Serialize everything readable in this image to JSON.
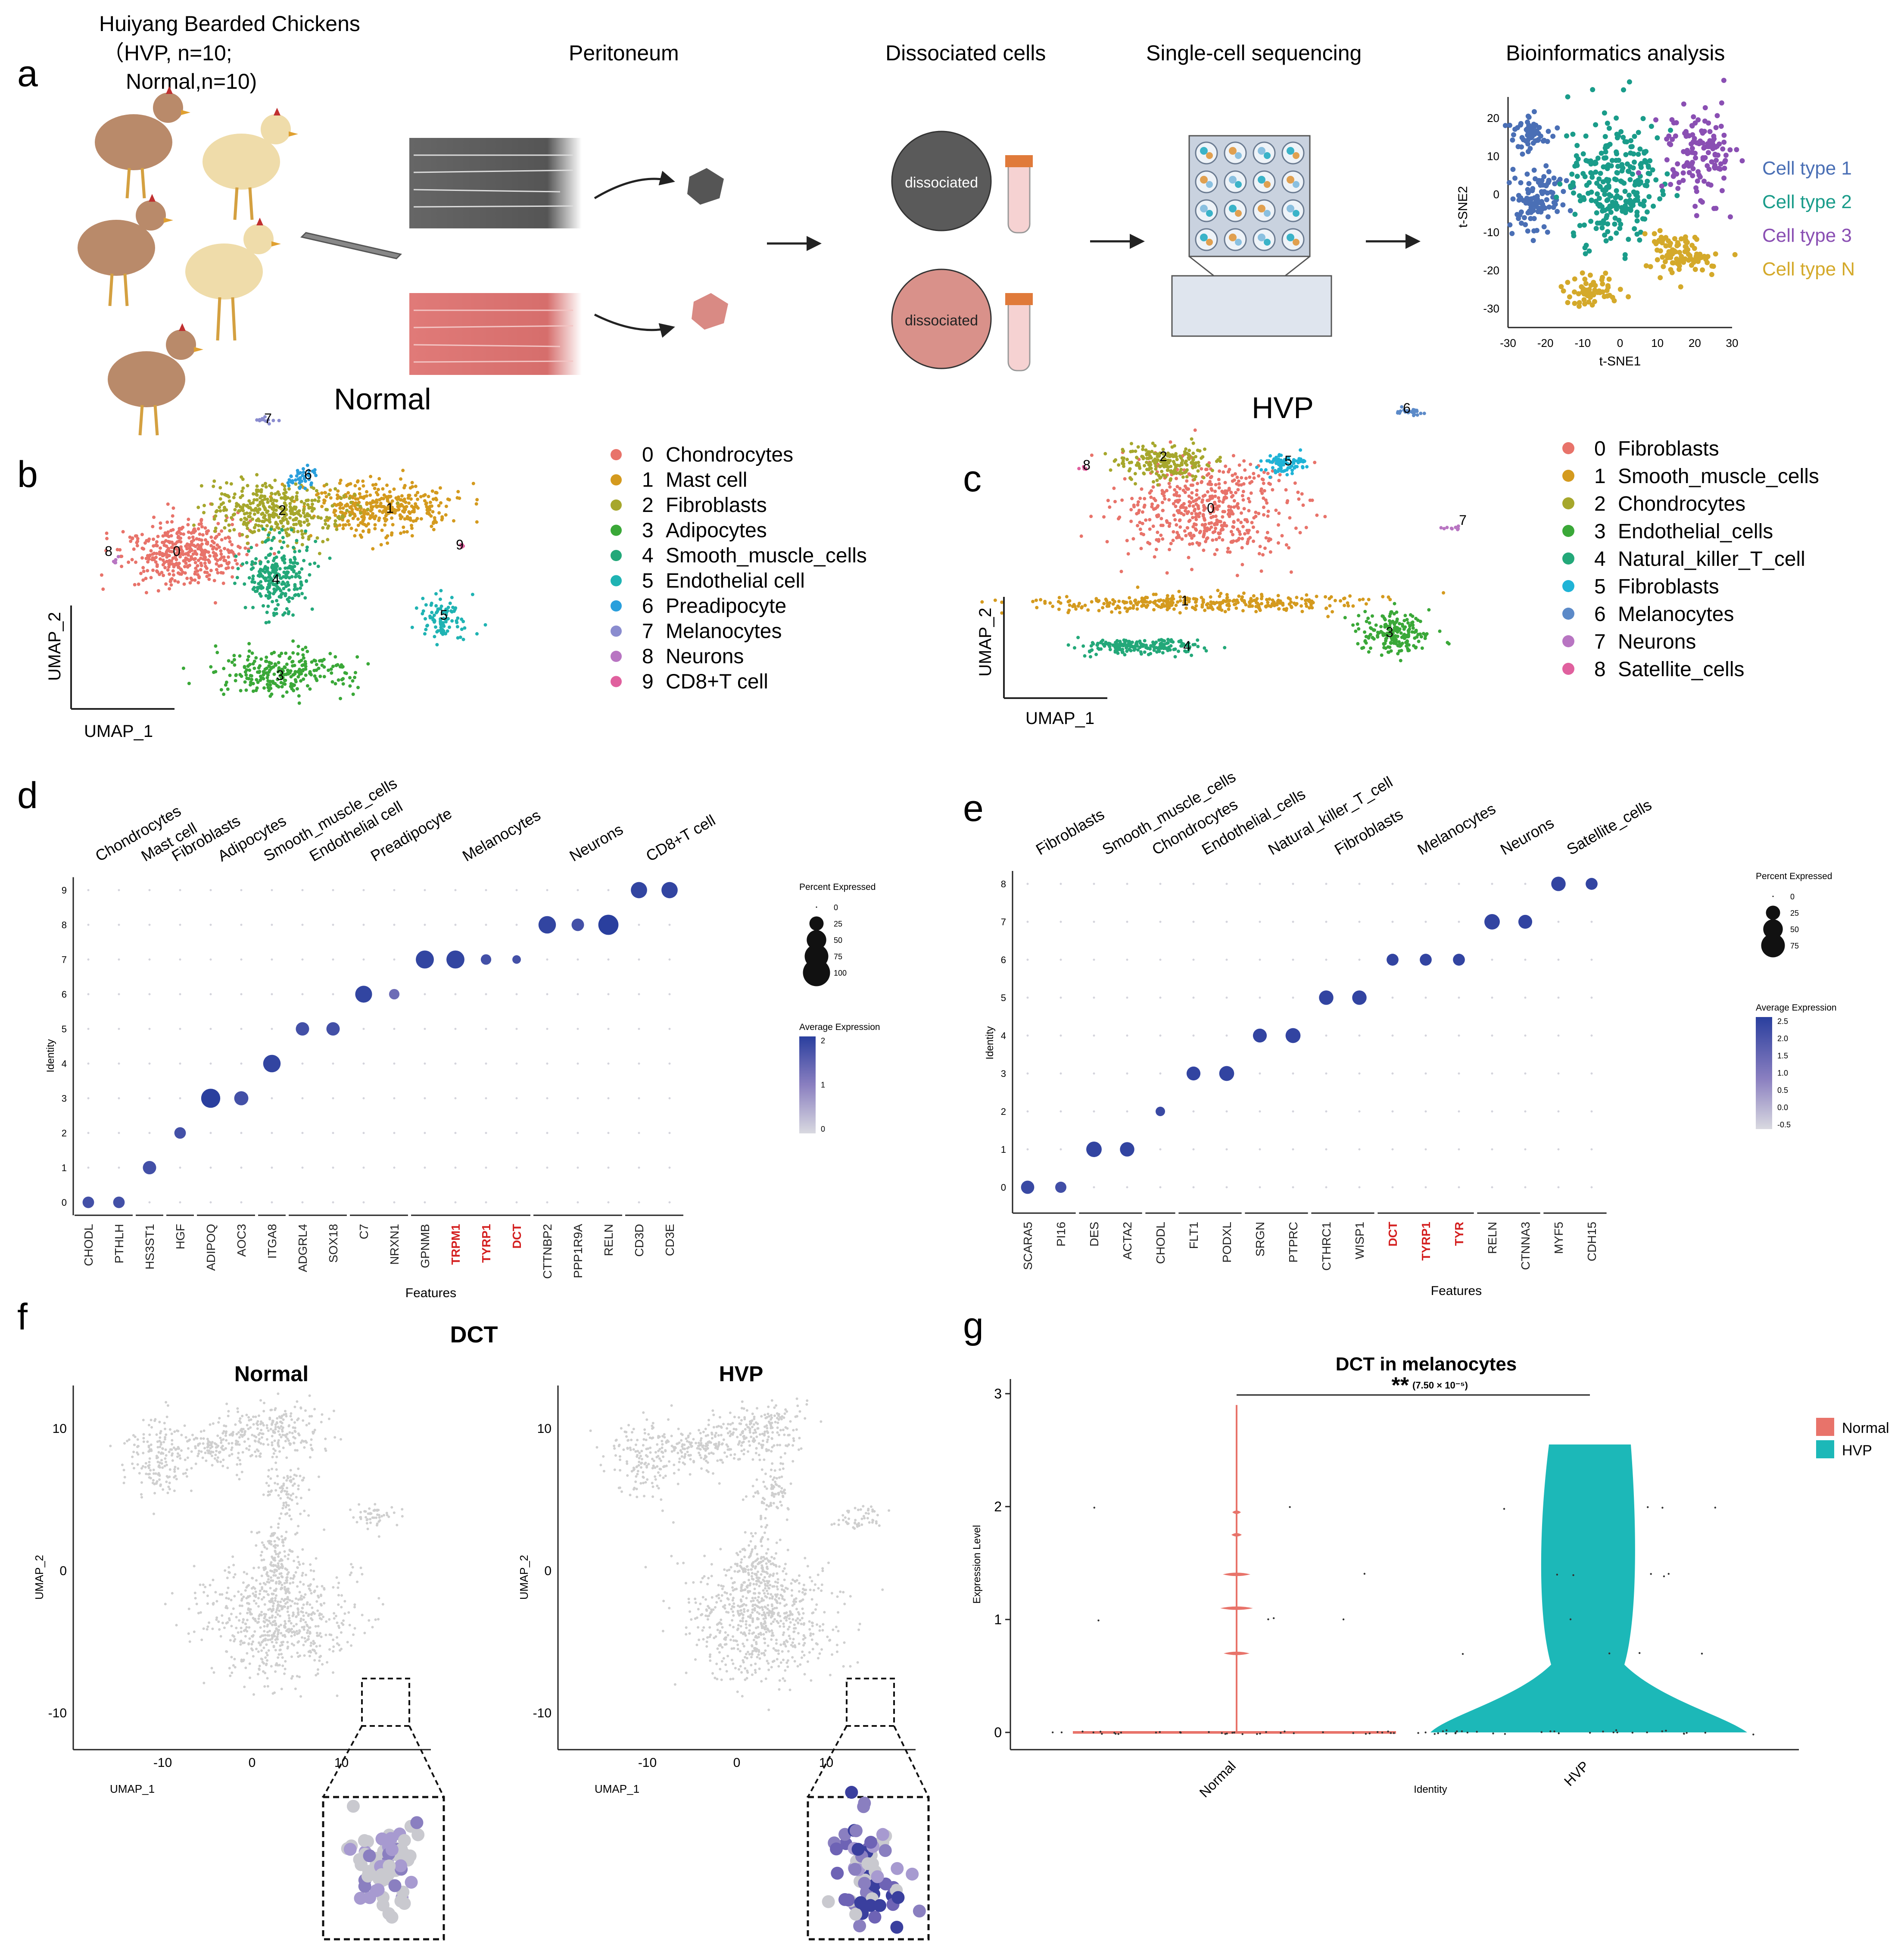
{
  "panel_letters": {
    "a": "a",
    "b": "b",
    "c": "c",
    "d": "d",
    "e": "e",
    "f": "f",
    "g": "g"
  },
  "panel_a": {
    "chickens_title": "Huiyang Bearded Chickens",
    "chickens_hvp": "（HVP,     n=10;",
    "chickens_normal": "Normal,n=10)",
    "peritoneum": "Peritoneum",
    "dissociated_cells": "Dissociated cells",
    "single_cell_seq": "Single-cell sequencing",
    "bioinformatics": "Bioinformatics analysis",
    "dissociated_label": "dissociated",
    "tsne": {
      "xlabel": "t-SNE1",
      "ylabel": "t-SNE2",
      "xticks": [
        "-30",
        "-20",
        "-10",
        "0",
        "10",
        "20",
        "30"
      ],
      "yticks": [
        "20",
        "10",
        "0",
        "-10",
        "-20",
        "-30"
      ],
      "legend": [
        "Cell type 1",
        "Cell type 2",
        "Cell type 3",
        "Cell type N"
      ],
      "colors": [
        "#4a6fb5",
        "#1a9c8a",
        "#8a4fb3",
        "#d4a92a"
      ]
    }
  },
  "panel_b": {
    "title": "Normal",
    "xlabel": "UMAP_1",
    "ylabel": "UMAP_2",
    "clusters": [
      {
        "id": "0",
        "name": "Chondrocytes",
        "color": "#e8736a"
      },
      {
        "id": "1",
        "name": "Mast cell",
        "color": "#d49a1e"
      },
      {
        "id": "2",
        "name": "Fibroblasts",
        "color": "#a6a72c"
      },
      {
        "id": "3",
        "name": "Adipocytes",
        "color": "#3aa838"
      },
      {
        "id": "4",
        "name": "Smooth_muscle_cells",
        "color": "#23a879"
      },
      {
        "id": "5",
        "name": "Endothelial cell",
        "color": "#1fb3b3"
      },
      {
        "id": "6",
        "name": "Preadipocyte",
        "color": "#2a9fdc"
      },
      {
        "id": "7",
        "name": "Melanocytes",
        "color": "#8a8ccf"
      },
      {
        "id": "8",
        "name": "Neurons",
        "color": "#b875c2"
      },
      {
        "id": "9",
        "name": "CD8+T cell",
        "color": "#e0609e"
      }
    ]
  },
  "panel_c": {
    "title": "HVP",
    "xlabel": "UMAP_1",
    "ylabel": "UMAP_2",
    "clusters": [
      {
        "id": "0",
        "name": "Fibroblasts",
        "color": "#e8736a"
      },
      {
        "id": "1",
        "name": "Smooth_muscle_cells",
        "color": "#d49a1e"
      },
      {
        "id": "2",
        "name": "Chondrocytes",
        "color": "#a6a72c"
      },
      {
        "id": "3",
        "name": "Endothelial_cells",
        "color": "#3aa838"
      },
      {
        "id": "4",
        "name": "Natural_killer_T_cell",
        "color": "#23a879"
      },
      {
        "id": "5",
        "name": "Fibroblasts",
        "color": "#1fb3d6"
      },
      {
        "id": "6",
        "name": "Melanocytes",
        "color": "#5c8ac8"
      },
      {
        "id": "7",
        "name": "Neurons",
        "color": "#b875c2"
      },
      {
        "id": "8",
        "name": "Satellite_cells",
        "color": "#e0609e"
      }
    ]
  },
  "panel_d": {
    "xlabel": "Features",
    "ylabel": "Identity",
    "yticks": [
      "0",
      "1",
      "2",
      "3",
      "4",
      "5",
      "6",
      "7",
      "8",
      "9"
    ],
    "groups": [
      {
        "label": "Chondrocytes",
        "genes": [
          "CHODL",
          "PTHLH"
        ]
      },
      {
        "label": "Mast cell",
        "genes": [
          "HS3ST1"
        ]
      },
      {
        "label": "Fibroblasts",
        "genes": [
          "HGF"
        ]
      },
      {
        "label": "Adipocytes",
        "genes": [
          "ADIPOQ",
          "AOC3"
        ]
      },
      {
        "label": "Smooth_muscle_cells",
        "genes": [
          "ITGA8"
        ]
      },
      {
        "label": "Endothelial cell",
        "genes": [
          "ADGRL4",
          "SOX18"
        ]
      },
      {
        "label": "Preadipocyte",
        "genes": [
          "C7",
          "NRXN1"
        ]
      },
      {
        "label": "Melanocytes",
        "genes": [
          "GPNMB",
          "TRPM1",
          "TYRP1",
          "DCT"
        ]
      },
      {
        "label": "Neurons",
        "genes": [
          "CTTNBP2",
          "PPP1R9A",
          "RELN"
        ]
      },
      {
        "label": "CD8+T cell",
        "genes": [
          "CD3D",
          "CD3E"
        ]
      }
    ],
    "highlight_genes": [
      "TRPM1",
      "TYRP1",
      "DCT"
    ],
    "pct_legend_title": "Percent Expressed",
    "pct_values": [
      "0",
      "25",
      "50",
      "75",
      "100"
    ],
    "avg_legend_title": "Average Expression",
    "avg_ticks": [
      "2",
      "1",
      "0"
    ]
  },
  "panel_e": {
    "xlabel": "Features",
    "ylabel": "Identity",
    "yticks": [
      "0",
      "1",
      "2",
      "3",
      "4",
      "5",
      "6",
      "7",
      "8"
    ],
    "groups": [
      {
        "label": "Fibroblasts",
        "genes": [
          "SCARA5",
          "PI16"
        ]
      },
      {
        "label": "Smooth_muscle_cells",
        "genes": [
          "DES",
          "ACTA2"
        ]
      },
      {
        "label": "Chondrocytes",
        "genes": [
          "CHODL"
        ]
      },
      {
        "label": "Endothelial_cells",
        "genes": [
          "FLT1",
          "PODXL"
        ]
      },
      {
        "label": "Natural_killer_T_cell",
        "genes": [
          "SRGN",
          "PTPRC"
        ]
      },
      {
        "label": "Fibroblasts",
        "genes": [
          "CTHRC1",
          "WISP1"
        ]
      },
      {
        "label": "Melanocytes",
        "genes": [
          "DCT",
          "TYRP1",
          "TYR"
        ]
      },
      {
        "label": "Neurons",
        "genes": [
          "RELN",
          "CTNNA3"
        ]
      },
      {
        "label": "Satellite_cells",
        "genes": [
          "MYF5",
          "CDH15"
        ]
      }
    ],
    "highlight_genes": [
      "DCT",
      "TYRP1",
      "TYR"
    ],
    "pct_legend_title": "Percent Expressed",
    "pct_values": [
      "0",
      "25",
      "50",
      "75"
    ],
    "avg_legend_title": "Average Expression",
    "avg_ticks": [
      "2.5",
      "2.0",
      "1.5",
      "1.0",
      "0.5",
      "0.0",
      "-0.5"
    ]
  },
  "panel_f": {
    "gene": "DCT",
    "left_title": "Normal",
    "right_title": "HVP",
    "xlabel": "UMAP_1",
    "ylabel": "UMAP_2",
    "xticks": [
      "-10",
      "0",
      "10"
    ],
    "yticks": [
      "10",
      "0",
      "-10"
    ]
  },
  "panel_g": {
    "title": "DCT in melanocytes",
    "significance": "**",
    "pvalue": "(7.50 × 10⁻⁵)",
    "xlabel": "Identity",
    "ylabel": "Expression Level",
    "yticks": [
      "0",
      "1",
      "2",
      "3"
    ],
    "categories": [
      "Normal",
      "HVP"
    ],
    "legend": [
      {
        "name": "Normal",
        "color": "#e8736a"
      },
      {
        "name": "HVP",
        "color": "#1cb8b8"
      }
    ]
  },
  "chart_data": [
    {
      "type": "scatter",
      "title": "Normal",
      "xlabel": "UMAP_1",
      "ylabel": "UMAP_2",
      "series": [
        {
          "name": "0 Chondrocytes",
          "values": [
            "cluster 0"
          ]
        },
        {
          "name": "1 Mast cell",
          "values": [
            "cluster 1"
          ]
        },
        {
          "name": "2 Fibroblasts",
          "values": [
            "cluster 2"
          ]
        },
        {
          "name": "3 Adipocytes",
          "values": [
            "cluster 3"
          ]
        },
        {
          "name": "4 Smooth_muscle_cells",
          "values": [
            "cluster 4"
          ]
        },
        {
          "name": "5 Endothelial cell",
          "values": [
            "cluster 5"
          ]
        },
        {
          "name": "6 Preadipocyte",
          "values": [
            "cluster 6"
          ]
        },
        {
          "name": "7 Melanocytes",
          "values": [
            "cluster 7"
          ]
        },
        {
          "name": "8 Neurons",
          "values": [
            "cluster 8"
          ]
        },
        {
          "name": "9 CD8+T cell",
          "values": [
            "cluster 9"
          ]
        }
      ]
    },
    {
      "type": "scatter",
      "title": "HVP",
      "xlabel": "UMAP_1",
      "ylabel": "UMAP_2",
      "series": [
        {
          "name": "0 Fibroblasts",
          "values": [
            "cluster 0"
          ]
        },
        {
          "name": "1 Smooth_muscle_cells",
          "values": [
            "cluster 1"
          ]
        },
        {
          "name": "2 Chondrocytes",
          "values": [
            "cluster 2"
          ]
        },
        {
          "name": "3 Endothelial_cells",
          "values": [
            "cluster 3"
          ]
        },
        {
          "name": "4 Natural_killer_T_cell",
          "values": [
            "cluster 4"
          ]
        },
        {
          "name": "5 Fibroblasts",
          "values": [
            "cluster 5"
          ]
        },
        {
          "name": "6 Melanocytes",
          "values": [
            "cluster 6"
          ]
        },
        {
          "name": "7 Neurons",
          "values": [
            "cluster 7"
          ]
        },
        {
          "name": "8 Satellite_cells",
          "values": [
            "cluster 8"
          ]
        }
      ]
    },
    {
      "type": "scatter",
      "title": "Dot plot Normal (Identity vs Features)",
      "x": [
        "CHODL",
        "PTHLH",
        "HS3ST1",
        "HGF",
        "ADIPOQ",
        "AOC3",
        "ITGA8",
        "ADGRL4",
        "SOX18",
        "C7",
        "NRXN1",
        "GPNMB",
        "TRPM1",
        "TYRP1",
        "DCT",
        "CTTNBP2",
        "PPP1R9A",
        "RELN",
        "CD3D",
        "CD3E"
      ],
      "points": [
        {
          "gene": "CHODL",
          "identity": 0,
          "pct": 20,
          "avg": 2
        },
        {
          "gene": "PTHLH",
          "identity": 0,
          "pct": 20,
          "avg": 2
        },
        {
          "gene": "HS3ST1",
          "identity": 1,
          "pct": 30,
          "avg": 2
        },
        {
          "gene": "HGF",
          "identity": 2,
          "pct": 20,
          "avg": 2
        },
        {
          "gene": "ADIPOQ",
          "identity": 3,
          "pct": 75,
          "avg": 2.3
        },
        {
          "gene": "AOC3",
          "identity": 3,
          "pct": 35,
          "avg": 2
        },
        {
          "gene": "ITGA8",
          "identity": 4,
          "pct": 60,
          "avg": 2.2
        },
        {
          "gene": "ADGRL4",
          "identity": 5,
          "pct": 30,
          "avg": 2
        },
        {
          "gene": "SOX18",
          "identity": 5,
          "pct": 30,
          "avg": 2
        },
        {
          "gene": "C7",
          "identity": 6,
          "pct": 55,
          "avg": 2.2
        },
        {
          "gene": "NRXN1",
          "identity": 6,
          "pct": 15,
          "avg": 1.5
        },
        {
          "gene": "GPNMB",
          "identity": 7,
          "pct": 65,
          "avg": 2.2
        },
        {
          "gene": "TRPM1",
          "identity": 7,
          "pct": 65,
          "avg": 2.2
        },
        {
          "gene": "TYRP1",
          "identity": 7,
          "pct": 15,
          "avg": 2
        },
        {
          "gene": "DCT",
          "identity": 7,
          "pct": 8,
          "avg": 2
        },
        {
          "gene": "CTTNBP2",
          "identity": 8,
          "pct": 60,
          "avg": 2.2
        },
        {
          "gene": "PPP1R9A",
          "identity": 8,
          "pct": 25,
          "avg": 2
        },
        {
          "gene": "RELN",
          "identity": 8,
          "pct": 85,
          "avg": 2.3
        },
        {
          "gene": "CD3D",
          "identity": 9,
          "pct": 50,
          "avg": 2.2
        },
        {
          "gene": "CD3E",
          "identity": 9,
          "pct": 50,
          "avg": 2.2
        }
      ]
    },
    {
      "type": "scatter",
      "title": "Dot plot HVP (Identity vs Features)",
      "x": [
        "SCARA5",
        "PI16",
        "DES",
        "ACTA2",
        "CHODL",
        "FLT1",
        "PODXL",
        "SRGN",
        "PTPRC",
        "CTHRC1",
        "WISP1",
        "DCT",
        "TYRP1",
        "TYR",
        "RELN",
        "CTNNA3",
        "MYF5",
        "CDH15"
      ],
      "points": [
        {
          "gene": "SCARA5",
          "identity": 0,
          "pct": 40,
          "avg": 2.3
        },
        {
          "gene": "PI16",
          "identity": 0,
          "pct": 25,
          "avg": 2.2
        },
        {
          "gene": "DES",
          "identity": 1,
          "pct": 60,
          "avg": 2.4
        },
        {
          "gene": "ACTA2",
          "identity": 1,
          "pct": 50,
          "avg": 2.4
        },
        {
          "gene": "CHODL",
          "identity": 2,
          "pct": 15,
          "avg": 2.3
        },
        {
          "gene": "FLT1",
          "identity": 3,
          "pct": 45,
          "avg": 2.4
        },
        {
          "gene": "PODXL",
          "identity": 3,
          "pct": 55,
          "avg": 2.4
        },
        {
          "gene": "SRGN",
          "identity": 4,
          "pct": 45,
          "avg": 2.4
        },
        {
          "gene": "PTPRC",
          "identity": 4,
          "pct": 55,
          "avg": 2.4
        },
        {
          "gene": "CTHRC1",
          "identity": 5,
          "pct": 50,
          "avg": 2.4
        },
        {
          "gene": "WISP1",
          "identity": 5,
          "pct": 50,
          "avg": 2.4
        },
        {
          "gene": "DCT",
          "identity": 6,
          "pct": 30,
          "avg": 2.4
        },
        {
          "gene": "TYRP1",
          "identity": 6,
          "pct": 30,
          "avg": 2.4
        },
        {
          "gene": "TYR",
          "identity": 6,
          "pct": 30,
          "avg": 2.4
        },
        {
          "gene": "RELN",
          "identity": 7,
          "pct": 60,
          "avg": 2.4
        },
        {
          "gene": "CTNNA3",
          "identity": 7,
          "pct": 45,
          "avg": 2.4
        },
        {
          "gene": "MYF5",
          "identity": 8,
          "pct": 50,
          "avg": 2.4
        },
        {
          "gene": "CDH15",
          "identity": 8,
          "pct": 30,
          "avg": 2.4
        }
      ]
    },
    {
      "type": "area",
      "title": "DCT in melanocytes",
      "categories": [
        "Normal",
        "HVP"
      ],
      "xlabel": "Identity",
      "ylabel": "Expression Level",
      "ylim": [
        0,
        3
      ],
      "series": [
        {
          "name": "Normal",
          "max": 2.9,
          "median": 0
        },
        {
          "name": "HVP",
          "max": 2.55,
          "median": 0.3
        }
      ]
    }
  ]
}
